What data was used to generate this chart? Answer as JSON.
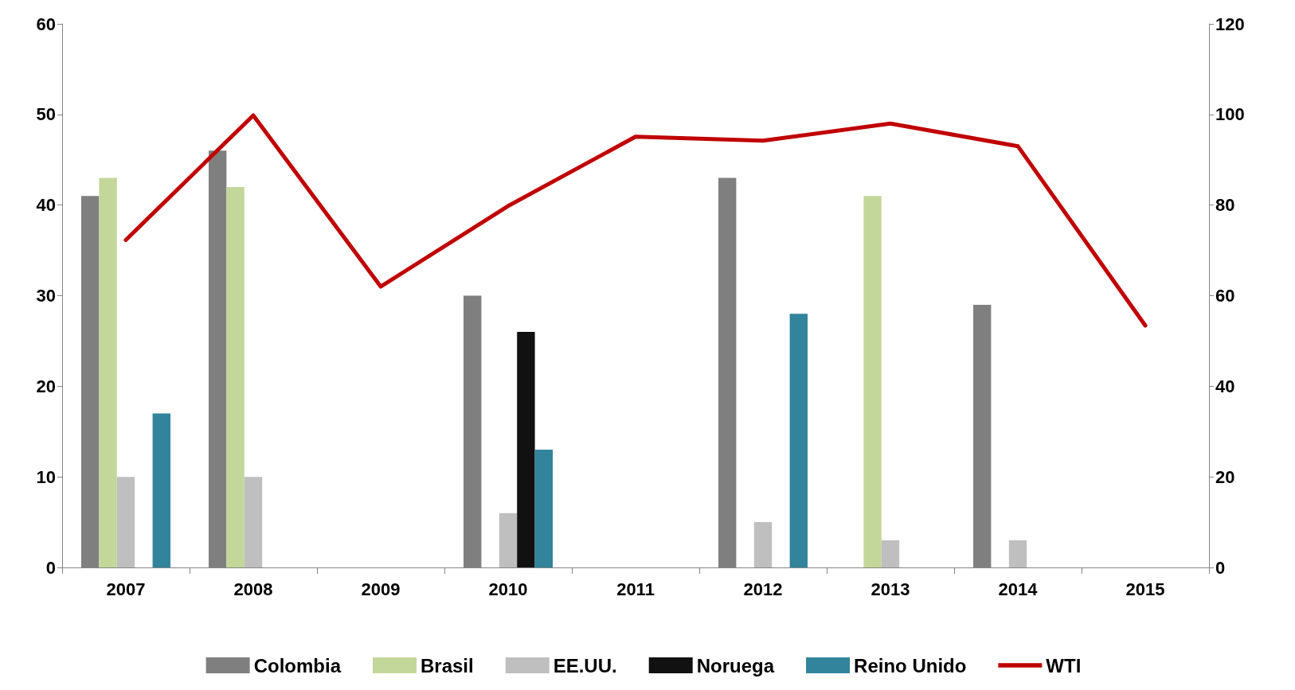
{
  "chart_data": {
    "type": "bar",
    "categories": [
      "2007",
      "2008",
      "2009",
      "2010",
      "2011",
      "2012",
      "2013",
      "2014",
      "2015"
    ],
    "series": [
      {
        "name": "Colombia",
        "color": "#7f7f7f",
        "values": [
          41,
          46,
          null,
          30,
          null,
          43,
          null,
          29,
          null
        ]
      },
      {
        "name": "Brasil",
        "color": "#c4d79b",
        "values": [
          43,
          42,
          null,
          null,
          null,
          null,
          41,
          null,
          null
        ]
      },
      {
        "name": "EE.UU.",
        "color": "#bfbfbf",
        "values": [
          10,
          10,
          null,
          6,
          null,
          5,
          3,
          3,
          null
        ]
      },
      {
        "name": "Noruega",
        "color": "#111111",
        "values": [
          null,
          null,
          null,
          26,
          null,
          null,
          null,
          null,
          null
        ]
      },
      {
        "name": "Reino Unido",
        "color": "#31849b",
        "values": [
          17,
          null,
          null,
          13,
          null,
          28,
          null,
          null,
          null
        ]
      },
      {
        "name": "WTI",
        "type": "line",
        "axis": "y2",
        "color": "#c00000",
        "values": [
          72.3,
          99.8,
          62,
          79.8,
          95.1,
          94.2,
          98,
          93,
          53.4
        ]
      }
    ],
    "ylim": [
      0,
      60
    ],
    "yticks": [
      0,
      10,
      20,
      30,
      40,
      50,
      60
    ],
    "y2lim": [
      0,
      120
    ],
    "y2ticks": [
      0,
      20,
      40,
      60,
      80,
      100,
      120
    ],
    "grid": false,
    "legend": "bottom",
    "marker": "none",
    "line_style": "solid"
  }
}
